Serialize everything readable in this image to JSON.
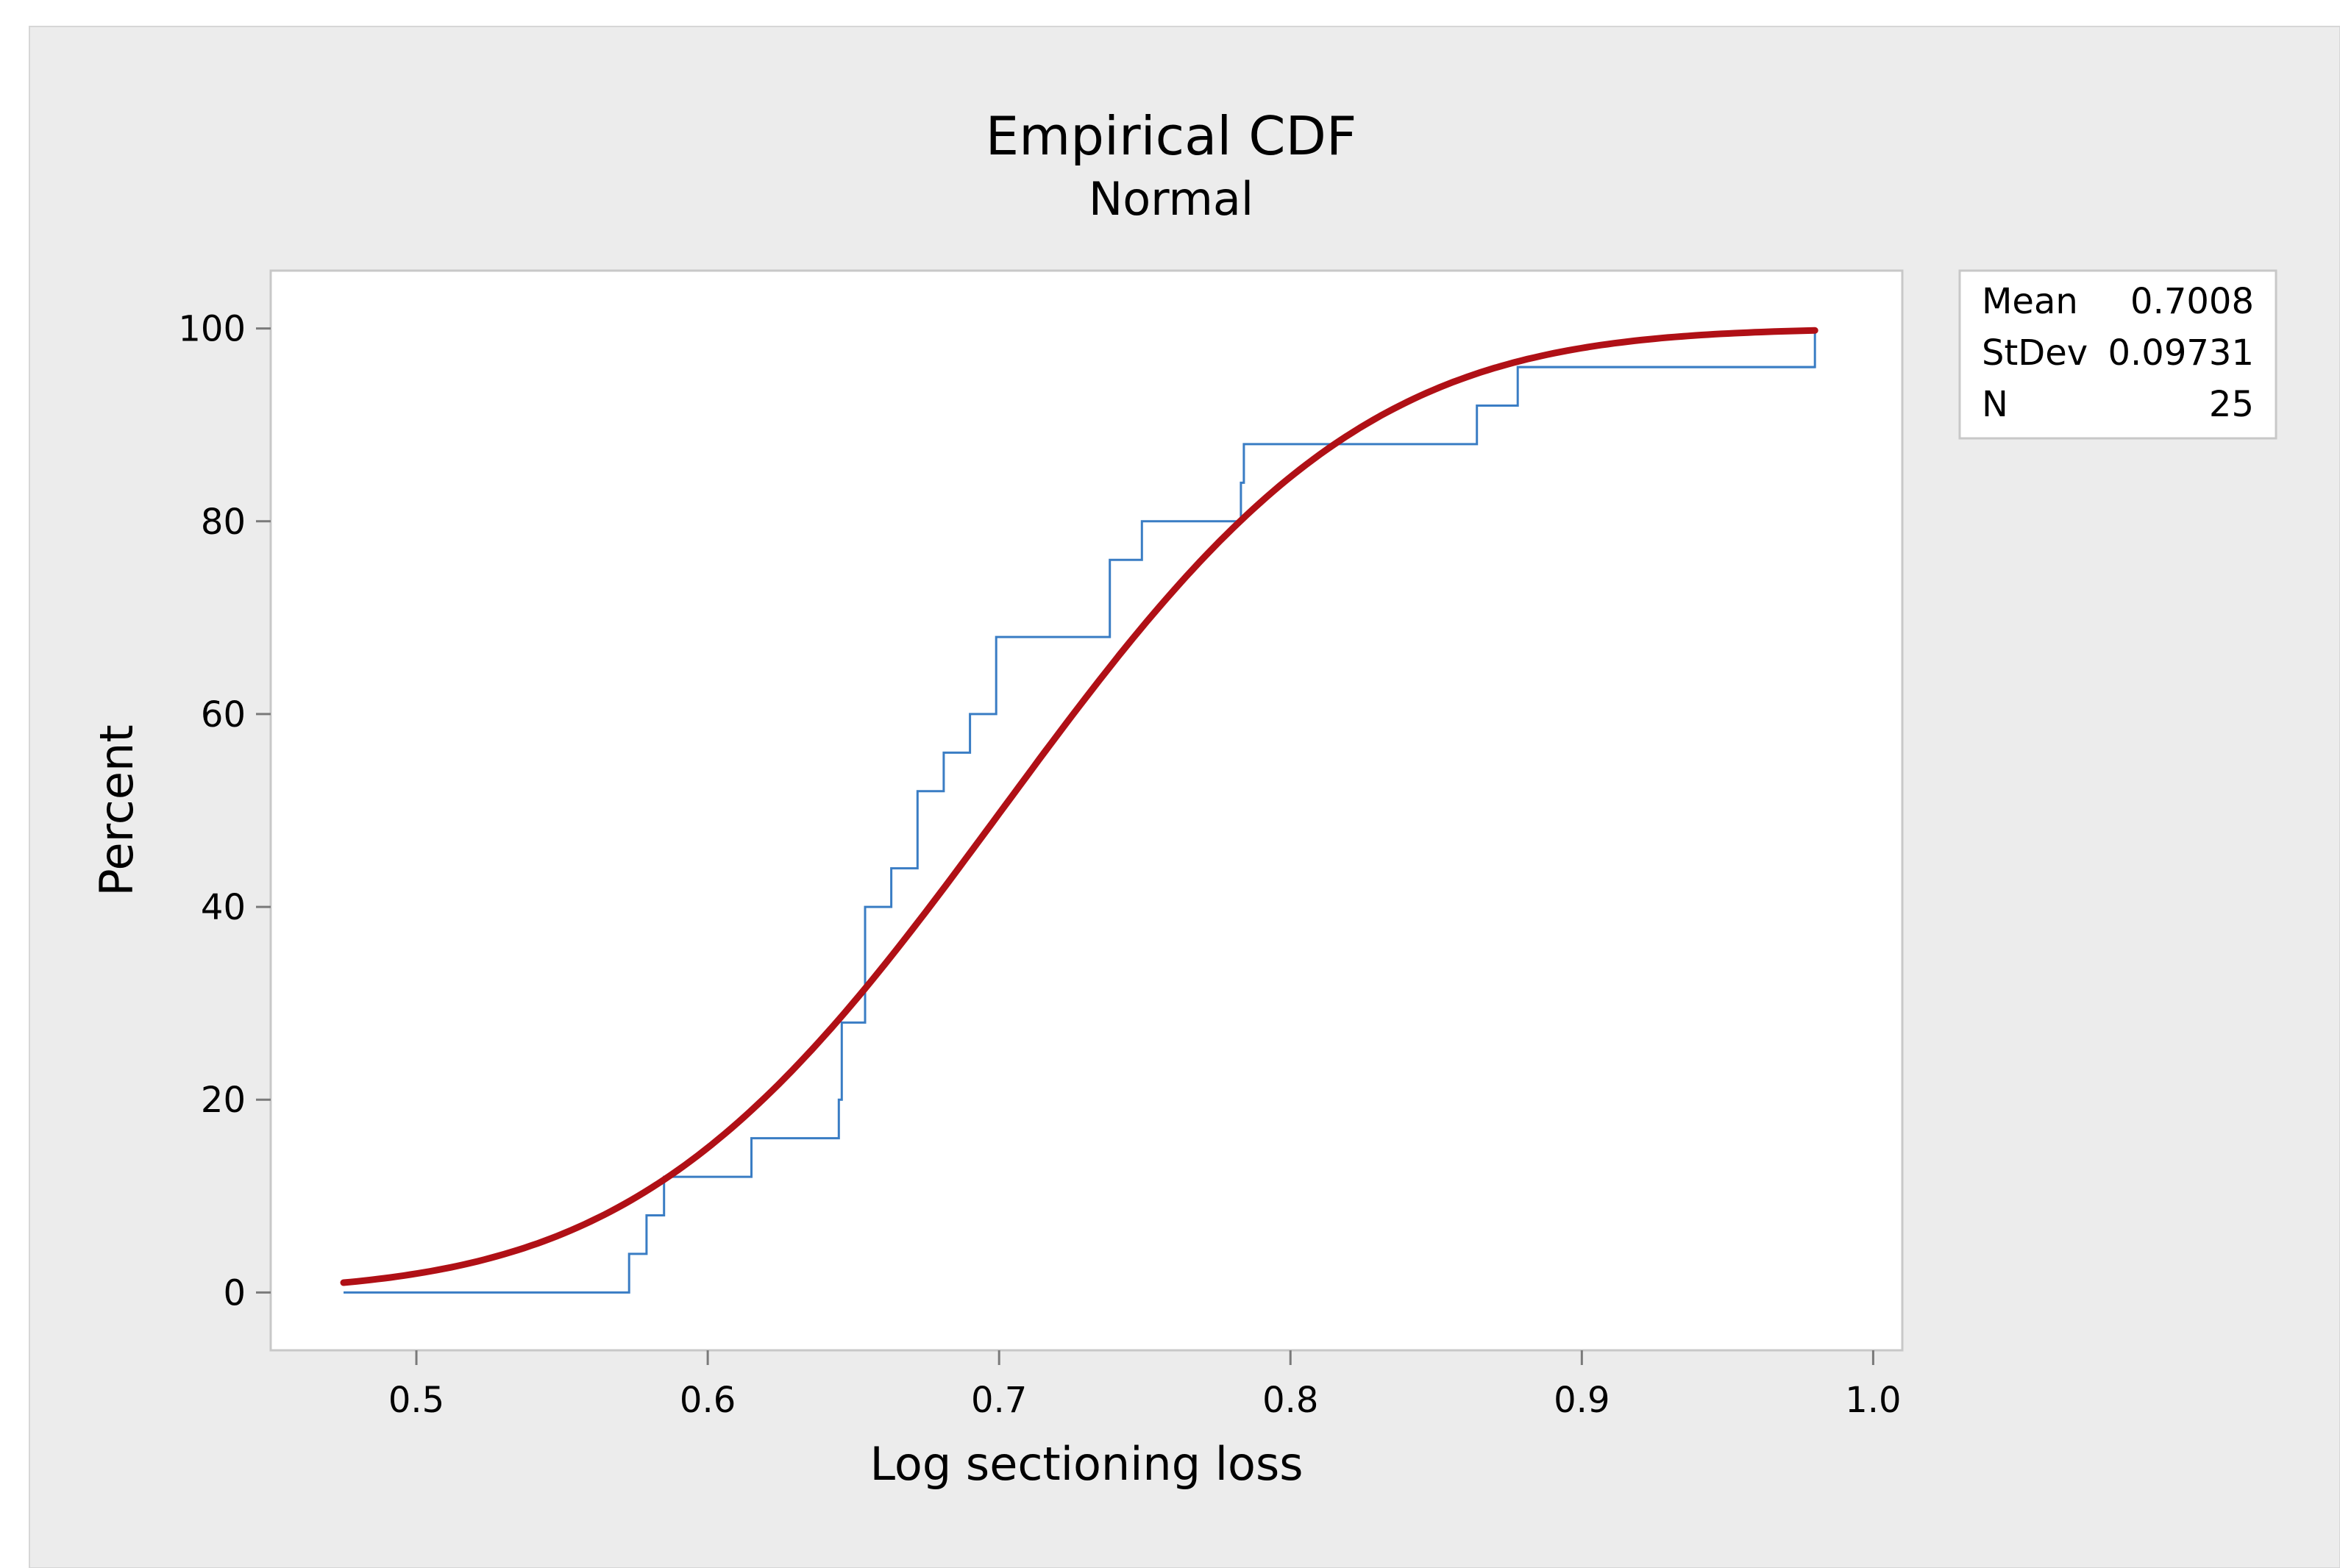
{
  "chart_data": {
    "type": "line",
    "title": "Empirical CDF",
    "subtitle": "Normal",
    "xlabel": "Log sectioning loss",
    "ylabel": "Percent",
    "xlim": [
      0.45,
      1.01
    ],
    "ylim": [
      -6,
      106
    ],
    "x_ticks": [
      0.5,
      0.6,
      0.7,
      0.8,
      0.9,
      1.0
    ],
    "x_tick_labels": [
      "0.5",
      "0.6",
      "0.7",
      "0.8",
      "0.9",
      "1.0"
    ],
    "y_ticks": [
      0,
      20,
      40,
      60,
      80,
      100
    ],
    "y_tick_labels": [
      "0",
      "20",
      "40",
      "60",
      "80",
      "100"
    ],
    "grid": false,
    "legend_position": "top-right",
    "stats": [
      {
        "label": "Mean",
        "value": "0.7008"
      },
      {
        "label": "StDev",
        "value": "0.09731"
      },
      {
        "label": "N",
        "value": "25"
      }
    ],
    "series": [
      {
        "name": "Empirical",
        "kind": "step",
        "color": "#3a7dc4",
        "x_start": 0.475,
        "x_end": 0.98,
        "x": [
          0.573,
          0.579,
          0.585,
          0.615,
          0.645,
          0.646,
          0.646,
          0.654,
          0.654,
          0.654,
          0.663,
          0.672,
          0.672,
          0.681,
          0.69,
          0.699,
          0.699,
          0.738,
          0.749,
          0.783,
          0.784,
          0.784,
          0.864,
          0.878,
          0.98
        ],
        "values": [
          4,
          8,
          12,
          16,
          20,
          24,
          28,
          32,
          36,
          40,
          44,
          48,
          52,
          56,
          60,
          64,
          68,
          76,
          80,
          84,
          88,
          88,
          92,
          96,
          100
        ]
      },
      {
        "name": "Normal",
        "kind": "cdf",
        "color": "#b01016",
        "mean": 0.7008,
        "stdev": 0.09731,
        "x_start": 0.475,
        "x_end": 0.98
      }
    ]
  }
}
